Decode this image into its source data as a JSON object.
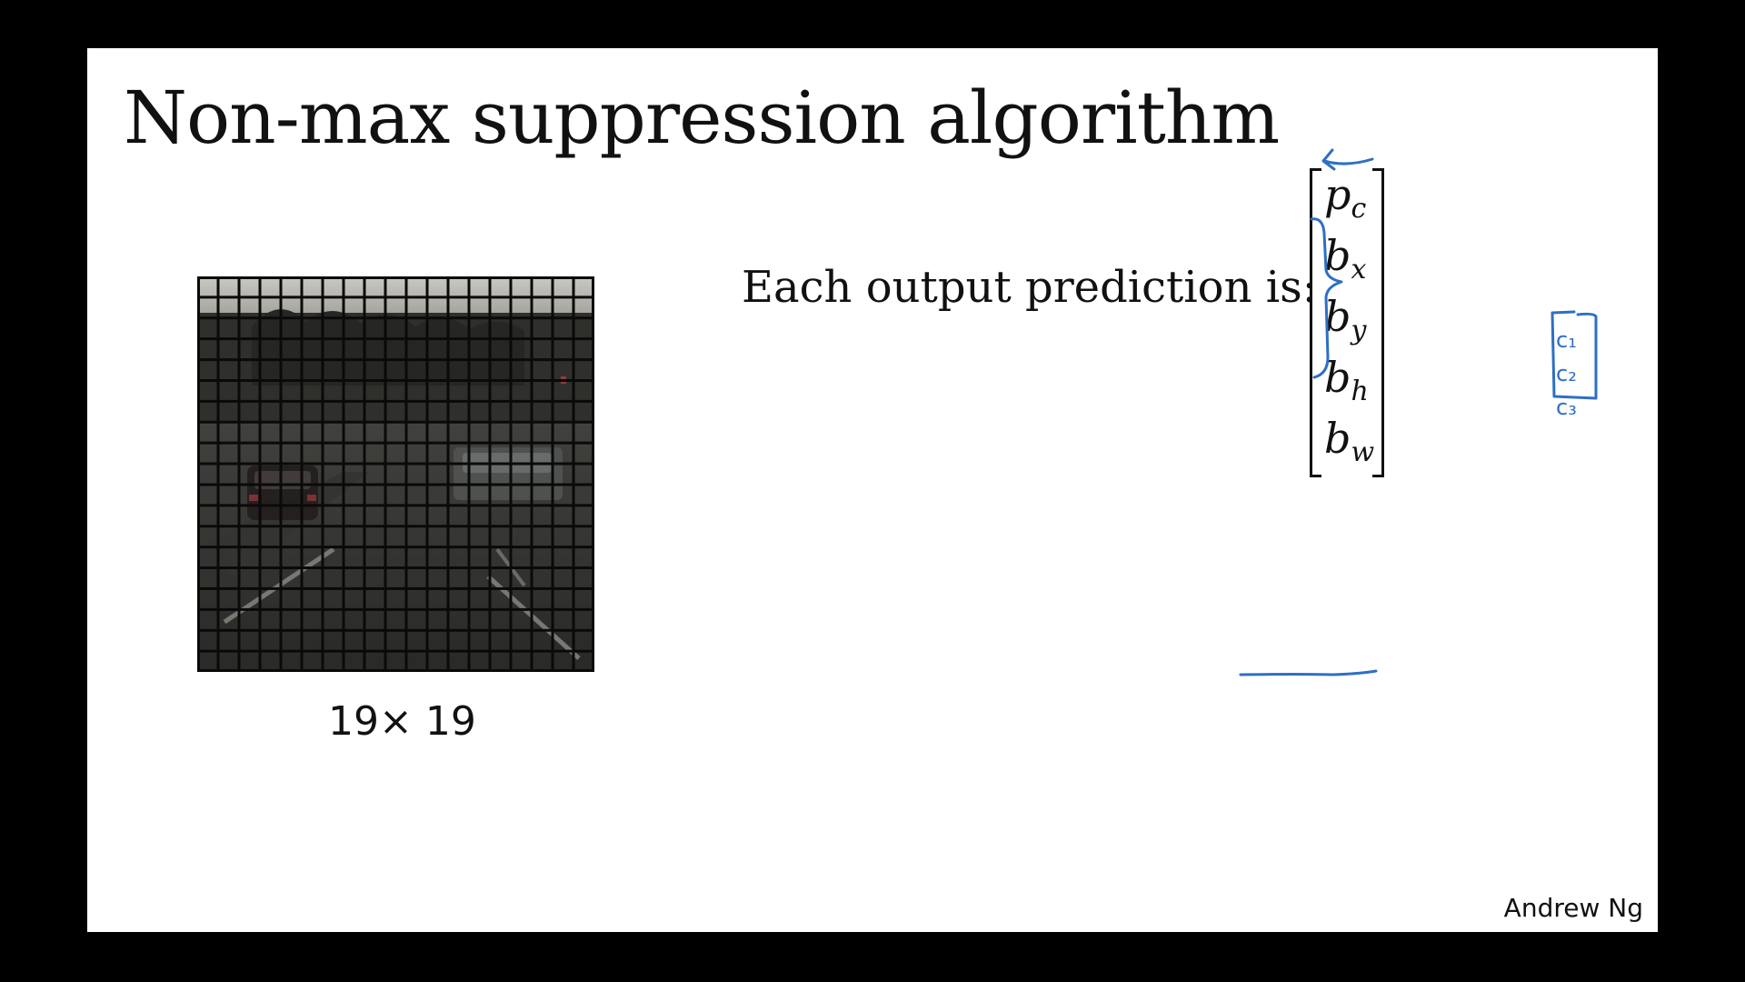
{
  "slide": {
    "title": "Non-max suppression algorithm",
    "grid_caption": "19× 19",
    "lead_text": "Each output prediction is:",
    "credit": "Andrew Ng",
    "output_vector": [
      {
        "symbol": "p",
        "subscript": "c"
      },
      {
        "symbol": "b",
        "subscript": "x"
      },
      {
        "symbol": "b",
        "subscript": "y"
      },
      {
        "symbol": "b",
        "subscript": "h"
      },
      {
        "symbol": "b",
        "subscript": "w"
      }
    ],
    "handwritten_classes": [
      "c₁",
      "c₂",
      "c₃"
    ]
  },
  "grid": {
    "rows": 19,
    "cols": 19
  },
  "colors": {
    "background": "#000000",
    "slide": "#ffffff",
    "text": "#111111",
    "ink": "#2e6fc4",
    "grid_line": "#0a0a0a"
  }
}
